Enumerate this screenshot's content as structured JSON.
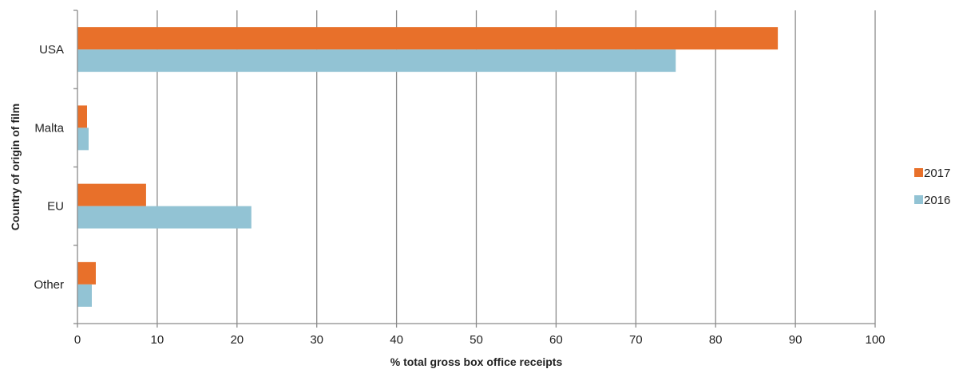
{
  "chart_data": {
    "type": "bar",
    "orientation": "horizontal",
    "categories": [
      "USA",
      "Malta",
      "EU",
      "Other"
    ],
    "series": [
      {
        "name": "2017",
        "color": "#e8702a",
        "values": [
          87.8,
          1.2,
          8.6,
          2.3
        ]
      },
      {
        "name": "2016",
        "color": "#92c3d4",
        "values": [
          75.0,
          1.4,
          21.8,
          1.8
        ]
      }
    ],
    "xlabel": "% total gross box office receipts",
    "ylabel": "Country of origin of film",
    "xlim": [
      0,
      100
    ],
    "xticks": [
      "0",
      "10",
      "20",
      "30",
      "40",
      "50",
      "60",
      "70",
      "80",
      "90",
      "100"
    ],
    "grid": "vertical",
    "legend_position": "right"
  }
}
